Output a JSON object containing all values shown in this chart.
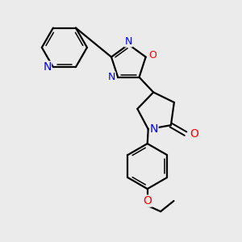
{
  "background_color": "#ebebeb",
  "line_color": "#000000",
  "bond_width": 1.6,
  "N_color": "#0000ff",
  "O_color": "#ff0000",
  "font_size": 8.5,
  "fig_width": 3.0,
  "fig_height": 3.0,
  "xlim": [
    0.0,
    5.2
  ],
  "ylim": [
    -0.3,
    6.0
  ]
}
